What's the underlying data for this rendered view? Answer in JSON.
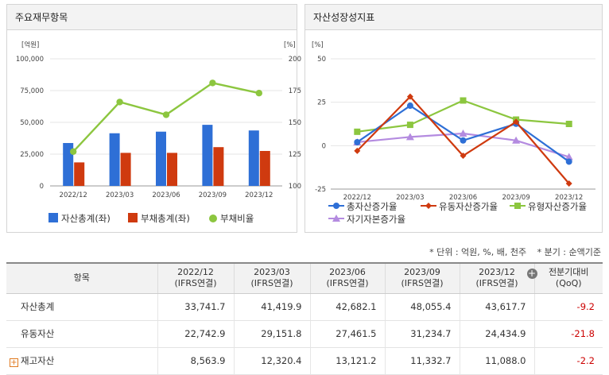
{
  "left_panel": {
    "title": "주요재무항목"
  },
  "right_panel": {
    "title": "자산성장성지표"
  },
  "chart_data": [
    {
      "type": "bar",
      "categories": [
        "2022/12",
        "2023/03",
        "2023/06",
        "2023/09",
        "2023/12"
      ],
      "series": [
        {
          "name": "자산총계(좌)",
          "kind": "bar",
          "axis": "left",
          "color": "#2e6fd6",
          "values": [
            33741.7,
            41419.9,
            42682.1,
            48055.4,
            43617.7
          ]
        },
        {
          "name": "부채총계(좌)",
          "kind": "bar",
          "axis": "left",
          "color": "#cf3a0f",
          "values": [
            18500,
            26000,
            26000,
            30500,
            27500
          ]
        },
        {
          "name": "부채비율",
          "kind": "line",
          "axis": "right",
          "color": "#8cc63f",
          "values": [
            127,
            166,
            156,
            181,
            173
          ]
        }
      ],
      "yleft": {
        "unit": "[억원]",
        "lim": [
          0,
          100000
        ],
        "ticks": [
          "0",
          "25,000",
          "50,000",
          "75,000",
          "100,000"
        ]
      },
      "yright": {
        "unit": "[%]",
        "lim": [
          100,
          200
        ],
        "ticks": [
          "100",
          "125",
          "150",
          "175",
          "200"
        ]
      },
      "legend": "bottom"
    },
    {
      "type": "line",
      "categories": [
        "2022/12",
        "2023/03",
        "2023/06",
        "2023/09",
        "2023/12"
      ],
      "series": [
        {
          "name": "총자산증가율",
          "color": "#2e6fd6",
          "marker": "circle",
          "values": [
            2,
            23,
            3,
            12.6,
            -9.2
          ]
        },
        {
          "name": "유동자산증가율",
          "color": "#cf3a0f",
          "marker": "diamond",
          "values": [
            -3,
            28.2,
            -5.8,
            13.7,
            -21.8
          ]
        },
        {
          "name": "유형자산증가율",
          "color": "#8cc63f",
          "marker": "square",
          "values": [
            8,
            12,
            26,
            15,
            12.5
          ]
        },
        {
          "name": "자기자본증가율",
          "color": "#b48be0",
          "marker": "triangle",
          "values": [
            2,
            5,
            7,
            3,
            -6.5
          ]
        }
      ],
      "yunit": "[%]",
      "ylim": [
        -25,
        50
      ],
      "yticks": [
        "-25",
        "0",
        "25",
        "50"
      ],
      "legend": "bottom"
    }
  ],
  "notes": {
    "unit": "* 단위 : 억원, %, 배, 천주",
    "period": "* 분기 : 순액기준"
  },
  "table": {
    "header_item": "항목",
    "columns": [
      {
        "period": "2022/12",
        "basis": "(IFRS연결)"
      },
      {
        "period": "2023/03",
        "basis": "(IFRS연결)"
      },
      {
        "period": "2023/06",
        "basis": "(IFRS연결)"
      },
      {
        "period": "2023/09",
        "basis": "(IFRS연결)"
      },
      {
        "period": "2023/12",
        "basis": "(IFRS연결)"
      }
    ],
    "qoq_label": "전분기대비",
    "qoq_sub": "(QoQ)",
    "plus_glyph": "+",
    "rows": [
      {
        "label": "자산총계",
        "values": [
          "33,741.7",
          "41,419.9",
          "42,682.1",
          "48,055.4",
          "43,617.7"
        ],
        "qoq": "-9.2",
        "expandable": false
      },
      {
        "label": "유동자산",
        "values": [
          "22,742.9",
          "29,151.8",
          "27,461.5",
          "31,234.7",
          "24,434.9"
        ],
        "qoq": "-21.8",
        "expandable": false
      },
      {
        "label": "재고자산",
        "values": [
          "8,563.9",
          "12,320.4",
          "13,121.2",
          "11,332.7",
          "11,088.0"
        ],
        "qoq": "-2.2",
        "expandable": true,
        "expand_glyph": "+"
      }
    ]
  }
}
